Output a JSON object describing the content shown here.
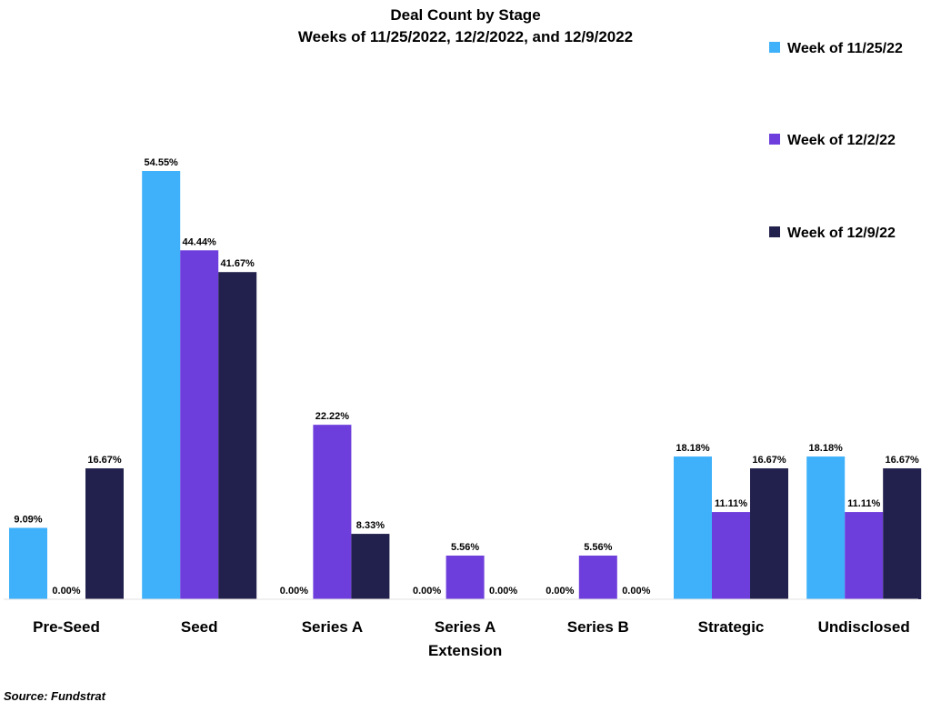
{
  "chart_data": {
    "type": "bar",
    "title": "Deal Count by Stage",
    "subtitle": "Weeks of 11/25/2022, 12/2/2022, and 12/9/2022",
    "categories": [
      "Pre-Seed",
      "Seed",
      "Series A",
      "Series A Extension",
      "Series B",
      "Strategic",
      "Undisclosed"
    ],
    "category_lines": [
      [
        "Pre-Seed"
      ],
      [
        "Seed"
      ],
      [
        "Series A"
      ],
      [
        "Series A",
        "Extension"
      ],
      [
        "Series B"
      ],
      [
        "Strategic"
      ],
      [
        "Undisclosed"
      ]
    ],
    "series": [
      {
        "name": "Week of 11/25/22",
        "color": "#3fb1fb",
        "values": [
          9.09,
          54.55,
          0.0,
          0.0,
          0.0,
          18.18,
          18.18
        ]
      },
      {
        "name": "Week of 12/2/22",
        "color": "#6d3edb",
        "values": [
          0.0,
          44.44,
          22.22,
          5.56,
          5.56,
          11.11,
          11.11
        ]
      },
      {
        "name": "Week of 12/9/22",
        "color": "#22214d",
        "values": [
          16.67,
          41.67,
          8.33,
          0.0,
          0.0,
          16.67,
          16.67
        ]
      }
    ],
    "value_suffix": "%",
    "ylim": [
      0,
      60
    ],
    "grid": false,
    "legend_position": "top-right",
    "xlabel": "",
    "ylabel": ""
  },
  "source": "Source: Fundstrat"
}
